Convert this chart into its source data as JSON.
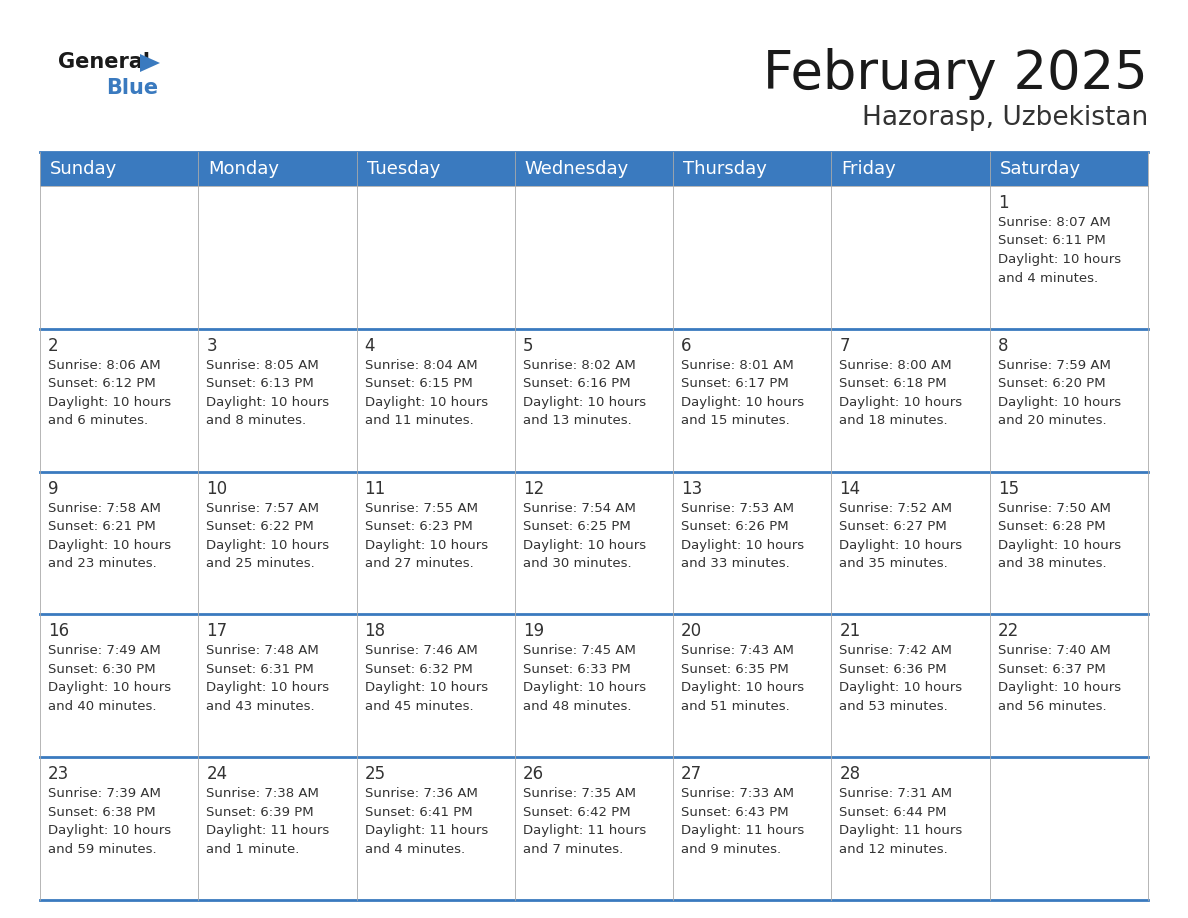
{
  "title": "February 2025",
  "subtitle": "Hazorasp, Uzbekistan",
  "header_color": "#3a7abf",
  "header_text_color": "#ffffff",
  "day_headers": [
    "Sunday",
    "Monday",
    "Tuesday",
    "Wednesday",
    "Thursday",
    "Friday",
    "Saturday"
  ],
  "title_fontsize": 38,
  "subtitle_fontsize": 19,
  "header_fontsize": 13,
  "day_num_fontsize": 12,
  "info_fontsize": 9.5,
  "line_color": "#3a7abf",
  "text_color": "#333333",
  "calendar_data": {
    "1": {
      "sunrise": "8:07 AM",
      "sunset": "6:11 PM",
      "daylight_hours": 10,
      "daylight_minutes": 4
    },
    "2": {
      "sunrise": "8:06 AM",
      "sunset": "6:12 PM",
      "daylight_hours": 10,
      "daylight_minutes": 6
    },
    "3": {
      "sunrise": "8:05 AM",
      "sunset": "6:13 PM",
      "daylight_hours": 10,
      "daylight_minutes": 8
    },
    "4": {
      "sunrise": "8:04 AM",
      "sunset": "6:15 PM",
      "daylight_hours": 10,
      "daylight_minutes": 11
    },
    "5": {
      "sunrise": "8:02 AM",
      "sunset": "6:16 PM",
      "daylight_hours": 10,
      "daylight_minutes": 13
    },
    "6": {
      "sunrise": "8:01 AM",
      "sunset": "6:17 PM",
      "daylight_hours": 10,
      "daylight_minutes": 15
    },
    "7": {
      "sunrise": "8:00 AM",
      "sunset": "6:18 PM",
      "daylight_hours": 10,
      "daylight_minutes": 18
    },
    "8": {
      "sunrise": "7:59 AM",
      "sunset": "6:20 PM",
      "daylight_hours": 10,
      "daylight_minutes": 20
    },
    "9": {
      "sunrise": "7:58 AM",
      "sunset": "6:21 PM",
      "daylight_hours": 10,
      "daylight_minutes": 23
    },
    "10": {
      "sunrise": "7:57 AM",
      "sunset": "6:22 PM",
      "daylight_hours": 10,
      "daylight_minutes": 25
    },
    "11": {
      "sunrise": "7:55 AM",
      "sunset": "6:23 PM",
      "daylight_hours": 10,
      "daylight_minutes": 27
    },
    "12": {
      "sunrise": "7:54 AM",
      "sunset": "6:25 PM",
      "daylight_hours": 10,
      "daylight_minutes": 30
    },
    "13": {
      "sunrise": "7:53 AM",
      "sunset": "6:26 PM",
      "daylight_hours": 10,
      "daylight_minutes": 33
    },
    "14": {
      "sunrise": "7:52 AM",
      "sunset": "6:27 PM",
      "daylight_hours": 10,
      "daylight_minutes": 35
    },
    "15": {
      "sunrise": "7:50 AM",
      "sunset": "6:28 PM",
      "daylight_hours": 10,
      "daylight_minutes": 38
    },
    "16": {
      "sunrise": "7:49 AM",
      "sunset": "6:30 PM",
      "daylight_hours": 10,
      "daylight_minutes": 40
    },
    "17": {
      "sunrise": "7:48 AM",
      "sunset": "6:31 PM",
      "daylight_hours": 10,
      "daylight_minutes": 43
    },
    "18": {
      "sunrise": "7:46 AM",
      "sunset": "6:32 PM",
      "daylight_hours": 10,
      "daylight_minutes": 45
    },
    "19": {
      "sunrise": "7:45 AM",
      "sunset": "6:33 PM",
      "daylight_hours": 10,
      "daylight_minutes": 48
    },
    "20": {
      "sunrise": "7:43 AM",
      "sunset": "6:35 PM",
      "daylight_hours": 10,
      "daylight_minutes": 51
    },
    "21": {
      "sunrise": "7:42 AM",
      "sunset": "6:36 PM",
      "daylight_hours": 10,
      "daylight_minutes": 53
    },
    "22": {
      "sunrise": "7:40 AM",
      "sunset": "6:37 PM",
      "daylight_hours": 10,
      "daylight_minutes": 56
    },
    "23": {
      "sunrise": "7:39 AM",
      "sunset": "6:38 PM",
      "daylight_hours": 10,
      "daylight_minutes": 59
    },
    "24": {
      "sunrise": "7:38 AM",
      "sunset": "6:39 PM",
      "daylight_hours": 11,
      "daylight_minutes": 1
    },
    "25": {
      "sunrise": "7:36 AM",
      "sunset": "6:41 PM",
      "daylight_hours": 11,
      "daylight_minutes": 4
    },
    "26": {
      "sunrise": "7:35 AM",
      "sunset": "6:42 PM",
      "daylight_hours": 11,
      "daylight_minutes": 7
    },
    "27": {
      "sunrise": "7:33 AM",
      "sunset": "6:43 PM",
      "daylight_hours": 11,
      "daylight_minutes": 9
    },
    "28": {
      "sunrise": "7:31 AM",
      "sunset": "6:44 PM",
      "daylight_hours": 11,
      "daylight_minutes": 12
    }
  },
  "week_layout": [
    [
      null,
      null,
      null,
      null,
      null,
      null,
      1
    ],
    [
      2,
      3,
      4,
      5,
      6,
      7,
      8
    ],
    [
      9,
      10,
      11,
      12,
      13,
      14,
      15
    ],
    [
      16,
      17,
      18,
      19,
      20,
      21,
      22
    ],
    [
      23,
      24,
      25,
      26,
      27,
      28,
      null
    ]
  ]
}
